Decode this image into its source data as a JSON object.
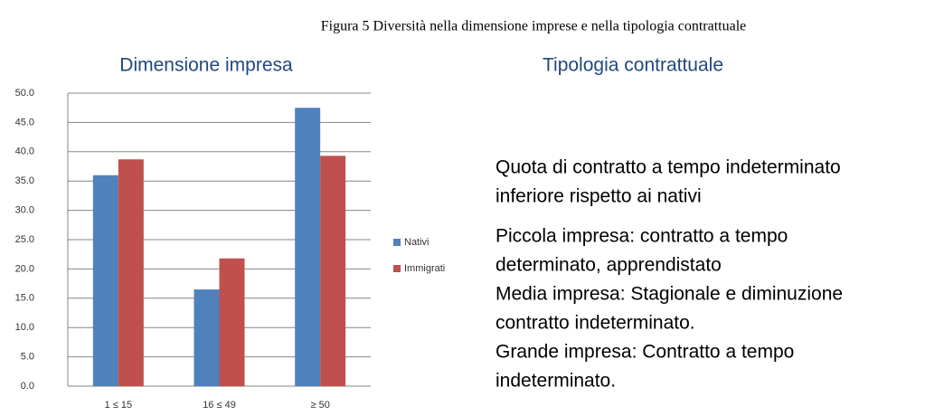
{
  "caption": "Figura 5 Diversità nella dimensione imprese e nella tipologia contrattuale",
  "chart_data": {
    "type": "bar",
    "title": "Dimensione impresa",
    "categories": [
      "1 ≤ 15",
      "16 ≤ 49",
      "≥ 50"
    ],
    "series": [
      {
        "name": "Nativi",
        "color": "#4f81bd",
        "values": [
          36.0,
          16.5,
          47.5
        ]
      },
      {
        "name": "Immigrati",
        "color": "#c0504d",
        "values": [
          38.7,
          21.8,
          39.3
        ]
      }
    ],
    "ylim": [
      0,
      50
    ],
    "yticks": [
      {
        "value": 0,
        "label": "0.0"
      },
      {
        "value": 5,
        "label": "5.0"
      },
      {
        "value": 10,
        "label": "10.0"
      },
      {
        "value": 15,
        "label": "15.0"
      },
      {
        "value": 20,
        "label": "20.0"
      },
      {
        "value": 25,
        "label": "25.0"
      },
      {
        "value": 30,
        "label": "30.0"
      },
      {
        "value": 35,
        "label": "35.0"
      },
      {
        "value": 40,
        "label": "40.0"
      },
      {
        "value": 45,
        "label": "45.0"
      },
      {
        "value": 50,
        "label": "50.0"
      }
    ],
    "grid": true,
    "legend": "right"
  },
  "panel": {
    "title": "Tipologia contrattuale",
    "paragraphs": [
      [
        "Quota di contratto a tempo indeterminato",
        "inferiore rispetto ai nativi"
      ],
      [
        "Piccola impresa: contratto a tempo",
        "determinato, apprendistato",
        "Media impresa: Stagionale e diminuzione",
        "contratto indeterminato.",
        "Grande impresa: Contratto a tempo",
        "indeterminato."
      ]
    ]
  }
}
